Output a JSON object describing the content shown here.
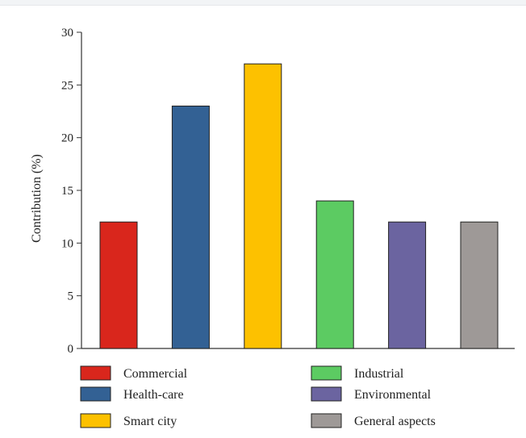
{
  "chart_data": {
    "type": "bar",
    "title": "",
    "xlabel": "",
    "ylabel": "Contribution (%)",
    "ylim": [
      0,
      30
    ],
    "yticks": [
      0,
      5,
      10,
      15,
      20,
      25,
      30
    ],
    "grid": false,
    "legend_placement": "bottom",
    "categories": [
      "Commercial",
      "Health-care",
      "Smart city",
      "Industrial",
      "Environmental",
      "General aspects"
    ],
    "values": [
      12,
      23,
      27,
      14,
      12,
      12
    ],
    "colors": [
      "#d9261c",
      "#336194",
      "#fdc100",
      "#5ccb62",
      "#6b64a0",
      "#9e9997"
    ]
  }
}
